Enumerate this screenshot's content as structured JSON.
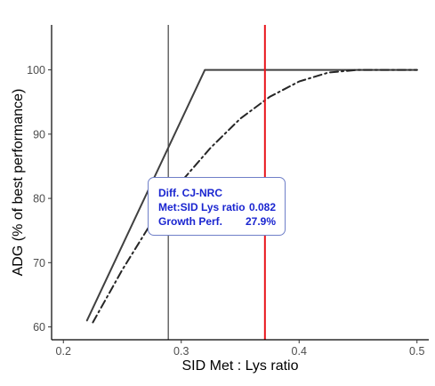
{
  "chart_data": {
    "type": "line",
    "xlabel": "SID Met : Lys ratio",
    "ylabel": "ADG  (% of best performance)",
    "xlim": [
      0.19,
      0.51
    ],
    "ylim": [
      58,
      107
    ],
    "x_ticks": [
      "0.2",
      "0.3",
      "0.4",
      "0.5"
    ],
    "y_ticks": [
      "60",
      "70",
      "80",
      "90",
      "100"
    ],
    "grid": false,
    "series": [
      {
        "style": "solid",
        "color": "#404040",
        "x": [
          0.22,
          0.32,
          0.5
        ],
        "y": [
          61,
          100,
          100
        ]
      },
      {
        "style": "dashdot",
        "color": "#262626",
        "x": [
          0.225,
          0.25,
          0.275,
          0.3,
          0.325,
          0.35,
          0.375,
          0.4,
          0.425,
          0.45,
          0.475,
          0.5
        ],
        "y": [
          60.7,
          68.9,
          76.3,
          82.6,
          87.9,
          92.4,
          95.8,
          98.2,
          99.6,
          100,
          100,
          100
        ]
      }
    ],
    "vlines": [
      {
        "x": 0.289,
        "color": "#404040"
      },
      {
        "x": 0.371,
        "color": "#e8141b"
      }
    ],
    "annotation": {
      "title": "Diff. CJ-NRC",
      "rows": [
        {
          "label": "Met:SID Lys ratio",
          "value": "0.082"
        },
        {
          "label": "Growth Perf.",
          "value": "27.9%"
        }
      ]
    }
  }
}
